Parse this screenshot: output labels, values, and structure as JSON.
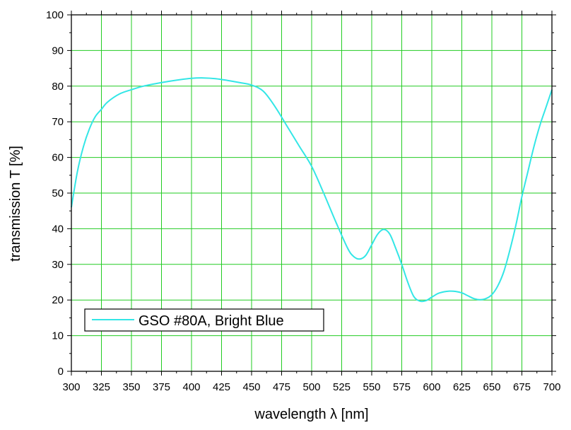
{
  "chart_data": {
    "type": "line",
    "title": "",
    "xlabel": "wavelength λ [nm]",
    "ylabel": "transmission T [%]",
    "xlim": [
      300,
      700
    ],
    "ylim": [
      0,
      100
    ],
    "xticks": [
      300,
      325,
      350,
      375,
      400,
      425,
      450,
      475,
      500,
      525,
      550,
      575,
      600,
      625,
      650,
      675,
      700
    ],
    "yticks": [
      0,
      10,
      20,
      30,
      40,
      50,
      60,
      70,
      80,
      90,
      100
    ],
    "grid": true,
    "legend_position": "bottom-left",
    "colors": {
      "series": "#33e6e6",
      "grid": "#22cc22",
      "axis": "#000000"
    },
    "series": [
      {
        "name": "GSO #80A, Bright Blue",
        "x": [
          300,
          305,
          310,
          315,
          320,
          325,
          330,
          340,
          350,
          360,
          375,
          390,
          400,
          410,
          420,
          430,
          440,
          450,
          460,
          470,
          480,
          490,
          500,
          510,
          520,
          530,
          535,
          540,
          545,
          550,
          555,
          560,
          565,
          570,
          575,
          580,
          585,
          590,
          595,
          600,
          605,
          610,
          615,
          620,
          625,
          630,
          635,
          640,
          645,
          650,
          655,
          660,
          665,
          670,
          675,
          680,
          685,
          690,
          695,
          700
        ],
        "y": [
          46,
          56,
          63,
          68,
          71.5,
          73.5,
          75.5,
          77.8,
          79,
          80,
          81,
          81.8,
          82.2,
          82.3,
          82.1,
          81.6,
          81,
          80.3,
          78.5,
          74,
          68.5,
          63,
          57.5,
          50,
          42,
          34.5,
          32.2,
          31.5,
          32.5,
          35.5,
          38.5,
          39.8,
          38.5,
          34.5,
          30,
          25,
          21,
          19.7,
          19.8,
          20.8,
          21.8,
          22.3,
          22.5,
          22.4,
          22,
          21.2,
          20.4,
          20.1,
          20.4,
          21.5,
          24,
          28,
          34,
          41,
          49,
          56,
          63,
          69,
          74,
          79
        ]
      }
    ]
  }
}
